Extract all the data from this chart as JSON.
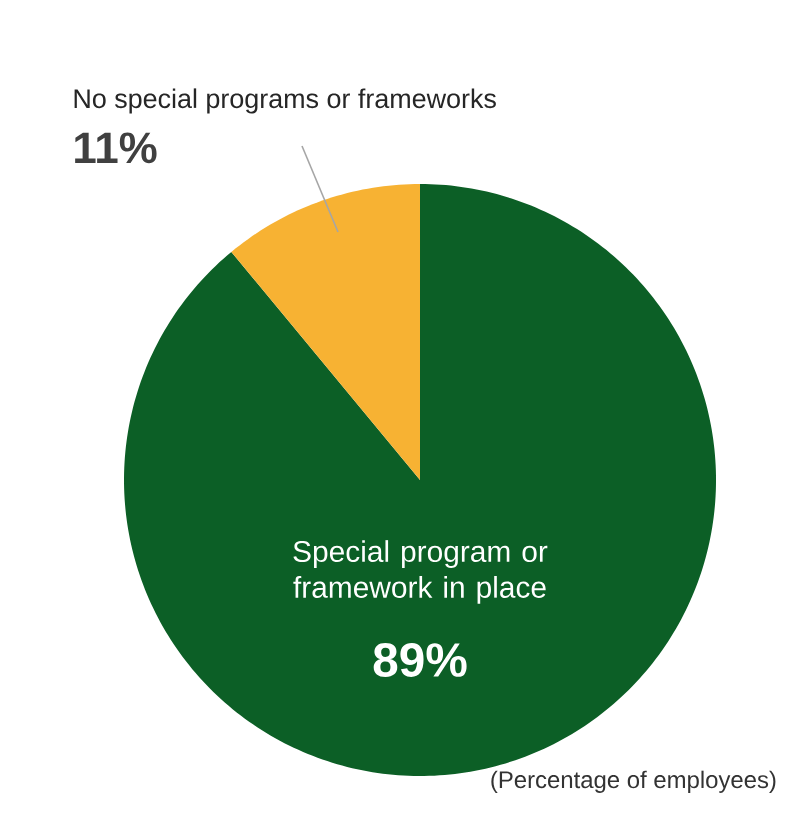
{
  "chart_data": {
    "type": "pie",
    "categories": [
      "Special program or framework in place",
      "No special programs or frameworks"
    ],
    "values": [
      89,
      11
    ],
    "colors": [
      "#0c5f26",
      "#f7b233"
    ],
    "value_labels": [
      "89%",
      "11%"
    ],
    "annotations": [
      "(Percentage of employees)"
    ]
  }
}
